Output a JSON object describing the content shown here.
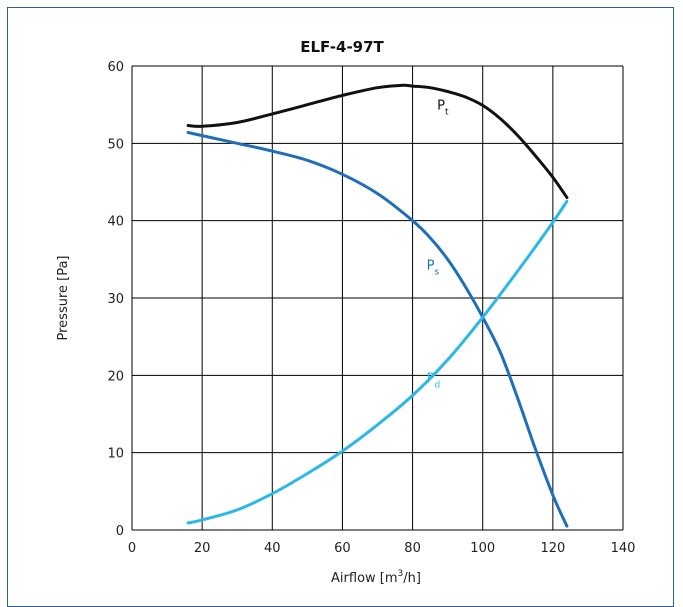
{
  "chart_data": {
    "type": "line",
    "title": "ELF-4-97T",
    "xlabel": {
      "main": "Airflow [m",
      "sup": "3",
      "end": "/h]"
    },
    "ylabel": "Pressure [Pa]",
    "xlim": [
      0,
      140
    ],
    "ylim": [
      0,
      60
    ],
    "xticks": [
      0,
      20,
      40,
      60,
      80,
      100,
      120,
      140
    ],
    "yticks": [
      0,
      10,
      20,
      30,
      40,
      50,
      60
    ],
    "grid": true,
    "series": [
      {
        "label": "P",
        "sub": "t",
        "color": "#111111",
        "x": [
          16,
          20,
          30,
          40,
          50,
          60,
          70,
          77,
          80,
          85,
          90,
          95,
          100,
          105,
          110,
          115,
          120,
          124
        ],
        "y": [
          52.3,
          52.2,
          52.7,
          53.8,
          55.0,
          56.2,
          57.2,
          57.5,
          57.4,
          57.2,
          56.7,
          56.0,
          54.9,
          53.2,
          51.0,
          48.4,
          45.6,
          43.0
        ]
      },
      {
        "label": "P",
        "sub": "s",
        "color": "#1f6fb8",
        "x": [
          16,
          20,
          30,
          40,
          50,
          60,
          70,
          80,
          85,
          90,
          95,
          100,
          105,
          110,
          115,
          120,
          124
        ],
        "y": [
          51.4,
          51.0,
          50.0,
          49.0,
          47.8,
          46.0,
          43.5,
          40.0,
          37.8,
          35.0,
          31.5,
          27.5,
          23.0,
          17.0,
          10.5,
          4.5,
          0.5
        ]
      },
      {
        "label": "P",
        "sub": "d",
        "color": "#2bb8e8",
        "x": [
          16,
          20,
          30,
          40,
          50,
          60,
          70,
          80,
          90,
          100,
          110,
          120,
          124
        ],
        "y": [
          0.9,
          1.3,
          2.6,
          4.7,
          7.3,
          10.2,
          13.6,
          17.4,
          22.0,
          27.5,
          33.5,
          39.8,
          42.5
        ]
      }
    ]
  }
}
